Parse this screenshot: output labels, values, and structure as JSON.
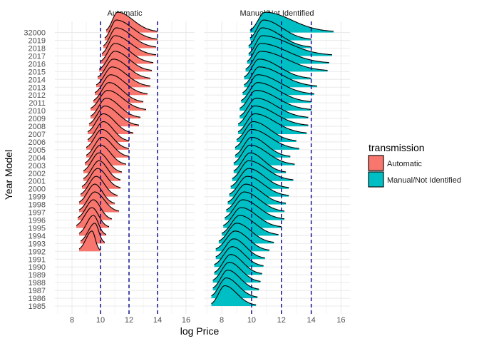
{
  "chart_data": {
    "type": "ridgeline",
    "xlabel": "log Price",
    "ylabel": "Year Model",
    "xlim": [
      6.8,
      16.6
    ],
    "x_ticks": [
      8,
      10,
      12,
      14,
      16
    ],
    "reference_lines": [
      10,
      12,
      14
    ],
    "grid": true,
    "years": [
      1985,
      1986,
      1987,
      1988,
      1989,
      1990,
      1991,
      1992,
      1993,
      1994,
      1995,
      1996,
      1997,
      1998,
      1999,
      2000,
      2001,
      2002,
      2003,
      2004,
      2005,
      2006,
      2007,
      2008,
      2009,
      2010,
      2011,
      2012,
      2013,
      2014,
      2015,
      2016,
      2017,
      2018,
      2019,
      32000
    ],
    "y_tick_labels": [
      "1985",
      "1986",
      "1987",
      "1988",
      "1989",
      "1990",
      "1991",
      "1992",
      "1993",
      "1994",
      "1995",
      "1996",
      "1997",
      "1998",
      "1999",
      "2000",
      "2001",
      "2002",
      "2003",
      "2004",
      "2005",
      "2006",
      "2007",
      "2008",
      "2009",
      "2010",
      "2011",
      "2012",
      "2013",
      "2014",
      "2015",
      "2016",
      "2017",
      "2018",
      "2019",
      "32000"
    ],
    "panels": [
      {
        "title": "Automatic",
        "color": "#F8766D",
        "ridges": [
          {
            "year": 1992,
            "peak": 9.4,
            "min": 8.5,
            "max": 10.0
          },
          {
            "year": 1993,
            "peak": 9.6,
            "min": 8.6,
            "max": 10.3
          },
          {
            "year": 1994,
            "peak": 9.5,
            "min": 8.5,
            "max": 10.4
          },
          {
            "year": 1995,
            "peak": 9.4,
            "min": 8.3,
            "max": 10.6
          },
          {
            "year": 1996,
            "peak": 9.5,
            "min": 8.4,
            "max": 10.8
          },
          {
            "year": 1997,
            "peak": 9.6,
            "min": 8.5,
            "max": 11.3
          },
          {
            "year": 1998,
            "peak": 9.6,
            "min": 8.5,
            "max": 11.0
          },
          {
            "year": 1999,
            "peak": 9.7,
            "min": 8.6,
            "max": 11.2
          },
          {
            "year": 2000,
            "peak": 9.8,
            "min": 8.7,
            "max": 11.4
          },
          {
            "year": 2001,
            "peak": 9.9,
            "min": 8.8,
            "max": 11.4
          },
          {
            "year": 2002,
            "peak": 9.9,
            "min": 8.8,
            "max": 11.5
          },
          {
            "year": 2003,
            "peak": 10.0,
            "min": 8.9,
            "max": 11.8
          },
          {
            "year": 2004,
            "peak": 10.1,
            "min": 9.0,
            "max": 12.0
          },
          {
            "year": 2005,
            "peak": 10.1,
            "min": 9.0,
            "max": 12.0
          },
          {
            "year": 2006,
            "peak": 10.2,
            "min": 9.1,
            "max": 12.0
          },
          {
            "year": 2007,
            "peak": 10.2,
            "min": 9.1,
            "max": 12.3
          },
          {
            "year": 2008,
            "peak": 10.3,
            "min": 9.2,
            "max": 12.7
          },
          {
            "year": 2009,
            "peak": 10.4,
            "min": 9.3,
            "max": 12.8
          },
          {
            "year": 2010,
            "peak": 10.5,
            "min": 9.3,
            "max": 13.2
          },
          {
            "year": 2011,
            "peak": 10.6,
            "min": 9.5,
            "max": 13.0
          },
          {
            "year": 2012,
            "peak": 10.7,
            "min": 9.6,
            "max": 13.3
          },
          {
            "year": 2013,
            "peak": 10.8,
            "min": 9.7,
            "max": 13.5
          },
          {
            "year": 2014,
            "peak": 10.9,
            "min": 9.8,
            "max": 13.5
          },
          {
            "year": 2015,
            "peak": 11.0,
            "min": 9.9,
            "max": 13.6
          },
          {
            "year": 2016,
            "peak": 11.0,
            "min": 10.0,
            "max": 13.7
          },
          {
            "year": 2017,
            "peak": 11.0,
            "min": 10.1,
            "max": 13.9
          },
          {
            "year": 2018,
            "peak": 11.1,
            "min": 10.2,
            "max": 13.9
          },
          {
            "year": 2019,
            "peak": 11.1,
            "min": 10.3,
            "max": 14.0
          },
          {
            "year": 32000,
            "peak": 11.2,
            "min": 10.4,
            "max": 14.0
          }
        ]
      },
      {
        "title": "Manual/Not Identified",
        "color": "#00BFC4",
        "ridges": [
          {
            "year": 1985,
            "peak": 8.2,
            "min": 7.3,
            "max": 10.3
          },
          {
            "year": 1986,
            "peak": 8.3,
            "min": 7.3,
            "max": 10.4
          },
          {
            "year": 1987,
            "peak": 8.4,
            "min": 7.4,
            "max": 10.5
          },
          {
            "year": 1988,
            "peak": 8.5,
            "min": 7.4,
            "max": 10.6
          },
          {
            "year": 1989,
            "peak": 8.6,
            "min": 7.5,
            "max": 10.7
          },
          {
            "year": 1990,
            "peak": 8.7,
            "min": 7.5,
            "max": 10.8
          },
          {
            "year": 1991,
            "peak": 8.8,
            "min": 7.6,
            "max": 10.9
          },
          {
            "year": 1992,
            "peak": 8.9,
            "min": 7.6,
            "max": 11.2
          },
          {
            "year": 1993,
            "peak": 9.0,
            "min": 7.8,
            "max": 11.5
          },
          {
            "year": 1994,
            "peak": 9.2,
            "min": 8.0,
            "max": 11.8
          },
          {
            "year": 1995,
            "peak": 9.3,
            "min": 8.1,
            "max": 12.0
          },
          {
            "year": 1996,
            "peak": 9.4,
            "min": 8.2,
            "max": 12.2
          },
          {
            "year": 1997,
            "peak": 9.5,
            "min": 8.3,
            "max": 12.2
          },
          {
            "year": 1998,
            "peak": 9.6,
            "min": 8.4,
            "max": 12.3
          },
          {
            "year": 1999,
            "peak": 9.7,
            "min": 8.5,
            "max": 12.5
          },
          {
            "year": 2000,
            "peak": 9.8,
            "min": 8.6,
            "max": 12.5
          },
          {
            "year": 2001,
            "peak": 9.8,
            "min": 8.7,
            "max": 12.8
          },
          {
            "year": 2002,
            "peak": 9.9,
            "min": 8.8,
            "max": 12.3
          },
          {
            "year": 2003,
            "peak": 9.9,
            "min": 8.8,
            "max": 12.9
          },
          {
            "year": 2004,
            "peak": 10.0,
            "min": 8.9,
            "max": 12.6
          },
          {
            "year": 2005,
            "peak": 10.0,
            "min": 8.9,
            "max": 13.2
          },
          {
            "year": 2006,
            "peak": 10.1,
            "min": 9.0,
            "max": 13.0
          },
          {
            "year": 2007,
            "peak": 10.2,
            "min": 9.1,
            "max": 13.7
          },
          {
            "year": 2008,
            "peak": 10.2,
            "min": 9.1,
            "max": 13.8
          },
          {
            "year": 2009,
            "peak": 10.3,
            "min": 9.2,
            "max": 13.8
          },
          {
            "year": 2010,
            "peak": 10.3,
            "min": 9.2,
            "max": 14.0
          },
          {
            "year": 2011,
            "peak": 10.4,
            "min": 9.3,
            "max": 14.0
          },
          {
            "year": 2012,
            "peak": 10.4,
            "min": 9.4,
            "max": 14.2
          },
          {
            "year": 2013,
            "peak": 10.5,
            "min": 9.5,
            "max": 14.4
          },
          {
            "year": 2014,
            "peak": 10.5,
            "min": 9.5,
            "max": 14.0
          },
          {
            "year": 2015,
            "peak": 10.6,
            "min": 9.6,
            "max": 15.1
          },
          {
            "year": 2016,
            "peak": 10.6,
            "min": 9.7,
            "max": 15.2
          },
          {
            "year": 2017,
            "peak": 10.7,
            "min": 9.8,
            "max": 15.4
          },
          {
            "year": 2018,
            "peak": 10.7,
            "min": 9.8,
            "max": 14.0
          },
          {
            "year": 2019,
            "peak": 10.8,
            "min": 9.9,
            "max": 14.0
          },
          {
            "year": 32000,
            "peak": 10.9,
            "min": 9.9,
            "max": 15.5
          }
        ]
      }
    ],
    "legend": {
      "title": "transmission",
      "position": "right",
      "entries": [
        {
          "label": "Automatic",
          "color": "#F8766D"
        },
        {
          "label": "Manual/Not Identified",
          "color": "#00BFC4"
        }
      ]
    }
  }
}
